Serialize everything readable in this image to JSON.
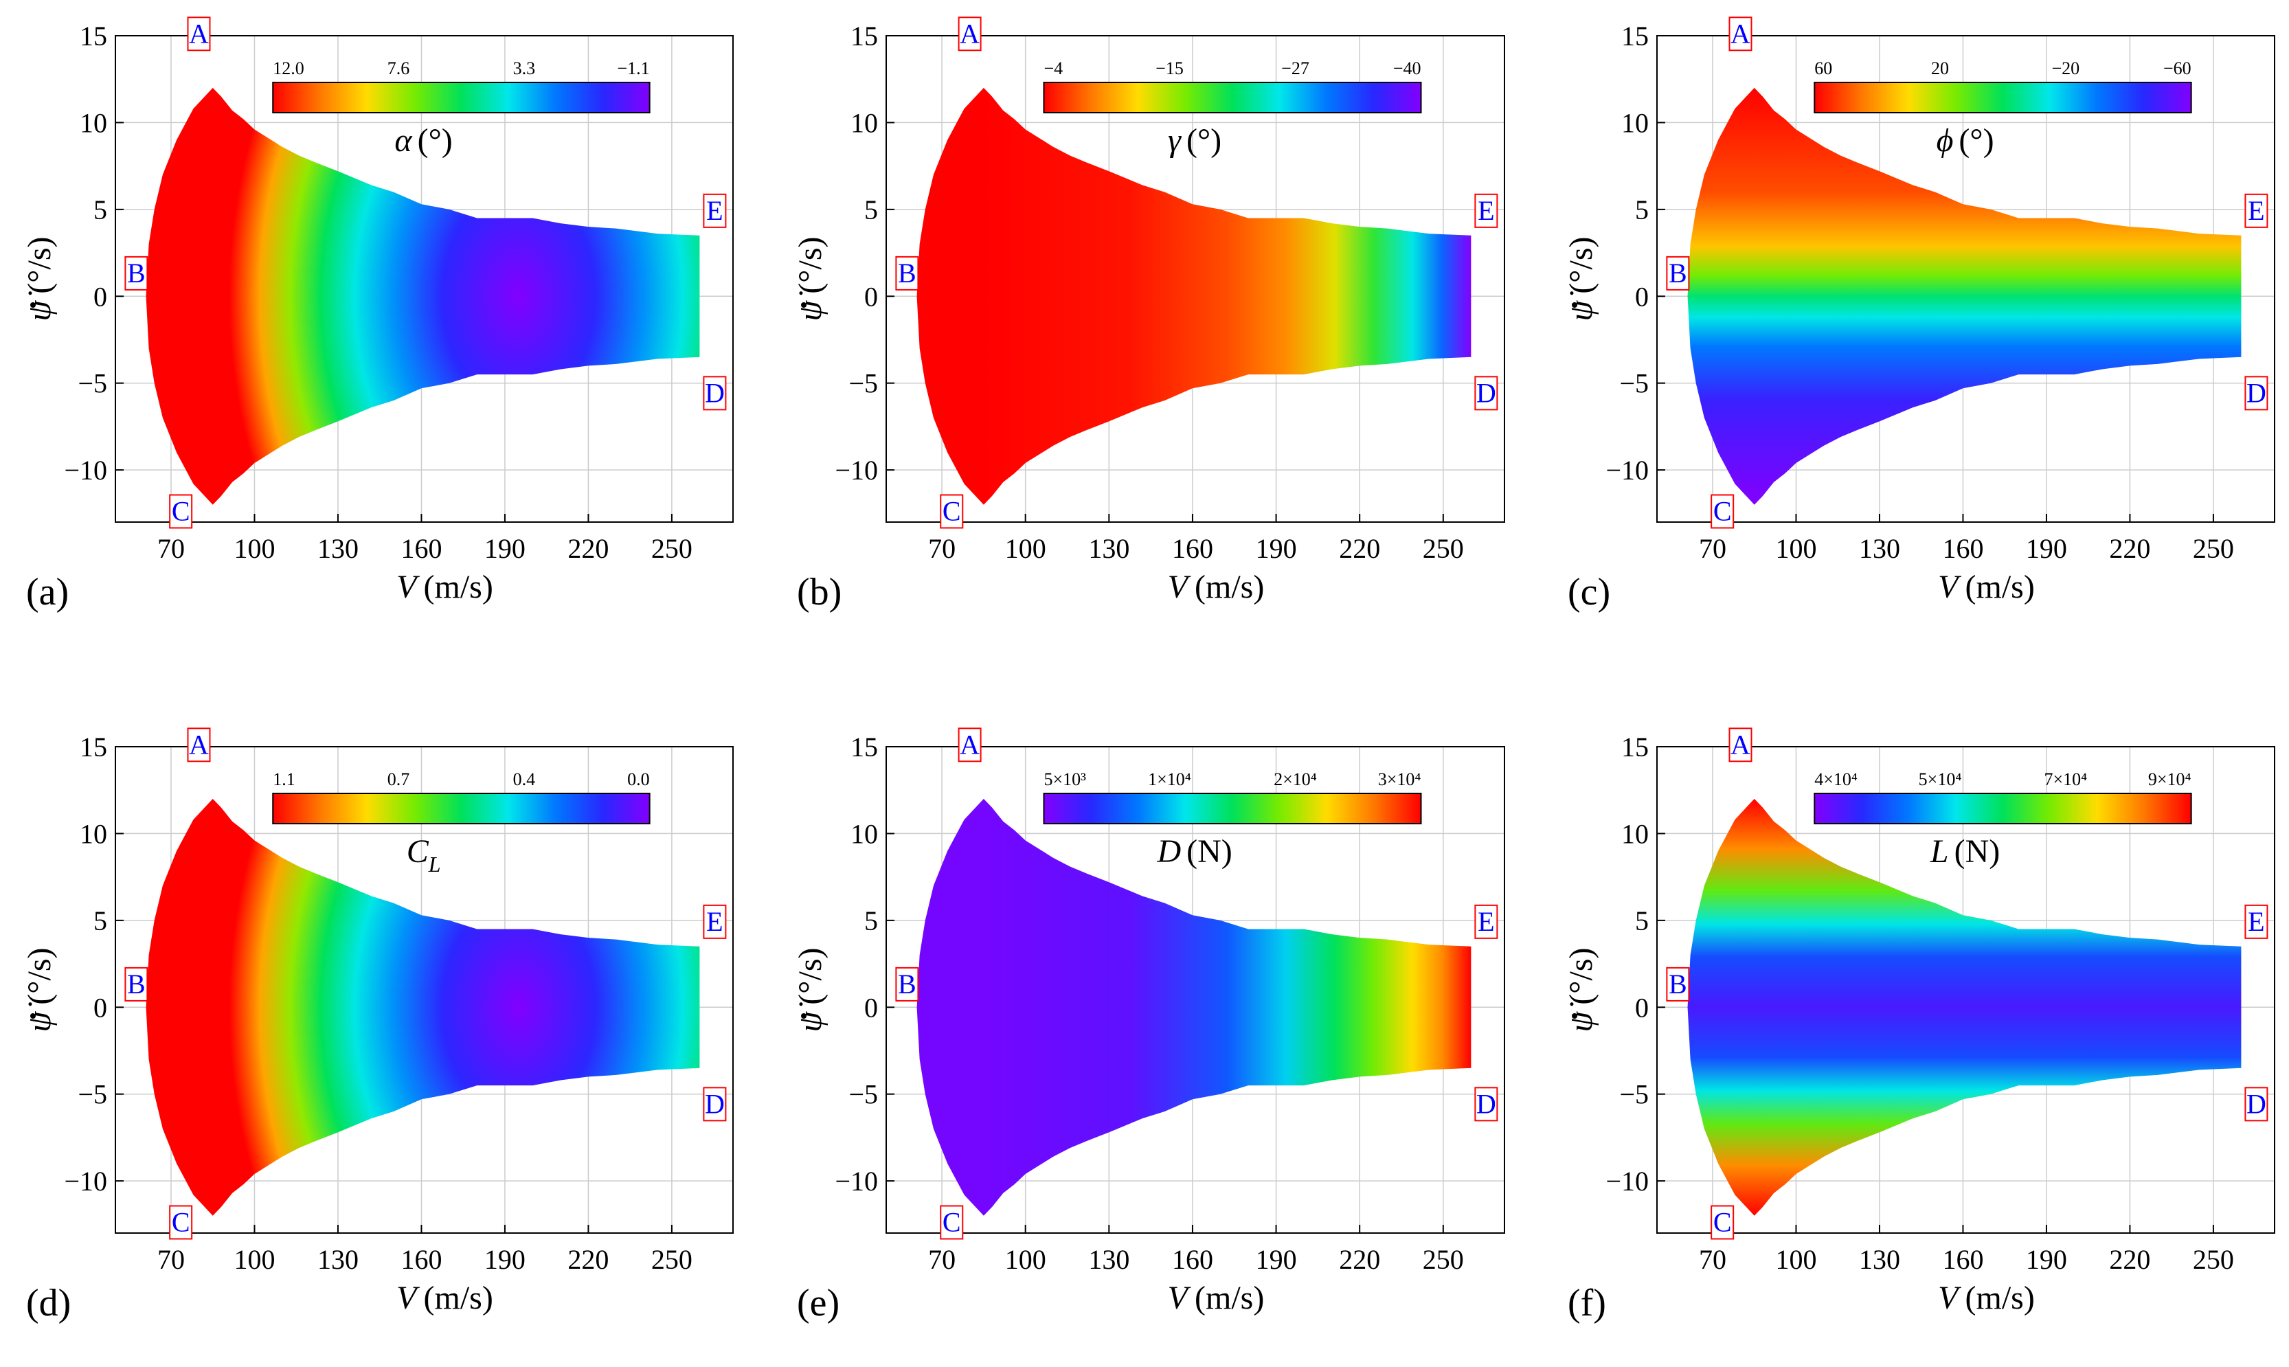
{
  "figure": {
    "description_free": true,
    "panel_count": 6
  },
  "chart_data": [
    {
      "type": "heatmap",
      "panel_label": "(a)",
      "variable": "α",
      "unit": "(°)",
      "xlabel": "V",
      "xunit": "(m/s)",
      "ylabel": "ψ̇",
      "yunit": "(°/s)",
      "xlim": [
        50,
        272
      ],
      "ylim": [
        -13,
        15
      ],
      "xticks": [
        70,
        100,
        130,
        160,
        190,
        220,
        250
      ],
      "yticks": [
        15,
        10,
        5,
        0,
        -5,
        -10
      ],
      "ytick_labels": [
        "15",
        "10",
        "5",
        "0",
        "−5",
        "−10"
      ],
      "colorbar": {
        "palette": "rainbow_red_to_violet",
        "tick_labels": [
          "12.0",
          "7.6",
          "3.3",
          "−1.1"
        ],
        "range": [
          12.0,
          -1.1
        ]
      },
      "field_pattern": "radial",
      "envelope": {
        "upper": [
          [
            62,
            0
          ],
          [
            63,
            5
          ],
          [
            66,
            7
          ],
          [
            73,
            10
          ],
          [
            85,
            12
          ],
          [
            100,
            10
          ],
          [
            130,
            7
          ],
          [
            160,
            5
          ],
          [
            190,
            4.5
          ],
          [
            220,
            4
          ],
          [
            260,
            3.5
          ]
        ],
        "points": {
          "A": [
            85,
            12
          ],
          "B": [
            62,
            0
          ],
          "C": [
            85,
            -12
          ],
          "D": [
            260,
            -3.5
          ],
          "E": [
            260,
            3.5
          ]
        }
      },
      "corner_labels": [
        "A",
        "B",
        "C",
        "D",
        "E"
      ]
    },
    {
      "type": "heatmap",
      "panel_label": "(b)",
      "variable": "γ",
      "unit": "(°)",
      "xlabel": "V",
      "xunit": "(m/s)",
      "ylabel": "ψ̇",
      "yunit": "(°/s)",
      "xlim": [
        50,
        272
      ],
      "ylim": [
        -13,
        15
      ],
      "xticks": [
        70,
        100,
        130,
        160,
        190,
        220,
        250
      ],
      "yticks": [
        15,
        10,
        5,
        0,
        -5,
        -10
      ],
      "ytick_labels": [
        "15",
        "10",
        "5",
        "0",
        "−5",
        "−10"
      ],
      "colorbar": {
        "palette": "rainbow_red_to_violet",
        "tick_labels": [
          "−4",
          "−15",
          "−27",
          "−40"
        ],
        "range": [
          -4,
          -40
        ]
      },
      "field_pattern": "velocity",
      "corner_labels": [
        "A",
        "B",
        "C",
        "D",
        "E"
      ]
    },
    {
      "type": "heatmap",
      "panel_label": "(c)",
      "variable": "ϕ",
      "unit": "(°)",
      "xlabel": "V",
      "xunit": "(m/s)",
      "ylabel": "ψ̇",
      "yunit": "(°/s)",
      "xlim": [
        50,
        272
      ],
      "ylim": [
        -13,
        15
      ],
      "xticks": [
        70,
        100,
        130,
        160,
        190,
        220,
        250
      ],
      "yticks": [
        15,
        10,
        5,
        0,
        -5,
        -10
      ],
      "ytick_labels": [
        "15",
        "10",
        "5",
        "0",
        "−5",
        "−10"
      ],
      "colorbar": {
        "palette": "rainbow_red_to_violet",
        "tick_labels": [
          "60",
          "20",
          "−20",
          "−60"
        ],
        "range": [
          60,
          -60
        ]
      },
      "field_pattern": "signed",
      "corner_labels": [
        "A",
        "B",
        "C",
        "D",
        "E"
      ]
    },
    {
      "type": "heatmap",
      "panel_label": "(d)",
      "variable": "C",
      "variable_sub": "L",
      "unit": "",
      "xlabel": "V",
      "xunit": "(m/s)",
      "ylabel": "ψ̇",
      "yunit": "(°/s)",
      "xlim": [
        50,
        272
      ],
      "ylim": [
        -13,
        15
      ],
      "xticks": [
        70,
        100,
        130,
        160,
        190,
        220,
        250
      ],
      "yticks": [
        15,
        10,
        5,
        0,
        -5,
        -10
      ],
      "ytick_labels": [
        "15",
        "10",
        "5",
        "0",
        "−5",
        "−10"
      ],
      "colorbar": {
        "palette": "rainbow_red_to_violet",
        "tick_labels": [
          "1.1",
          "0.7",
          "0.4",
          "0.0"
        ],
        "range": [
          1.1,
          0.0
        ]
      },
      "field_pattern": "radial",
      "corner_labels": [
        "A",
        "B",
        "C",
        "D",
        "E"
      ]
    },
    {
      "type": "heatmap",
      "panel_label": "(e)",
      "variable": "D",
      "unit": "(N)",
      "xlabel": "V",
      "xunit": "(m/s)",
      "ylabel": "ψ̇",
      "yunit": "(°/s)",
      "xlim": [
        50,
        272
      ],
      "ylim": [
        -13,
        15
      ],
      "xticks": [
        70,
        100,
        130,
        160,
        190,
        220,
        250
      ],
      "yticks": [
        15,
        10,
        5,
        0,
        -5,
        -10
      ],
      "ytick_labels": [
        "15",
        "10",
        "5",
        "0",
        "−5",
        "−10"
      ],
      "colorbar": {
        "palette": "rainbow_violet_to_red",
        "tick_labels": [
          "5×10³",
          "1×10⁴",
          "2×10⁴",
          "3×10⁴"
        ],
        "range": [
          5000,
          30000
        ]
      },
      "field_pattern": "velocity",
      "corner_labels": [
        "A",
        "B",
        "C",
        "D",
        "E"
      ]
    },
    {
      "type": "heatmap",
      "panel_label": "(f)",
      "variable": "L",
      "unit": "(N)",
      "xlabel": "V",
      "xunit": "(m/s)",
      "ylabel": "ψ̇",
      "yunit": "(°/s)",
      "xlim": [
        50,
        272
      ],
      "ylim": [
        -13,
        15
      ],
      "xticks": [
        70,
        100,
        130,
        160,
        190,
        220,
        250
      ],
      "yticks": [
        15,
        10,
        5,
        0,
        -5,
        -10
      ],
      "ytick_labels": [
        "15",
        "10",
        "5",
        "0",
        "−5",
        "−10"
      ],
      "colorbar": {
        "palette": "rainbow_violet_to_red",
        "tick_labels": [
          "4×10⁴",
          "5×10⁴",
          "7×10⁴",
          "9×10⁴"
        ],
        "range": [
          40000,
          90000
        ]
      },
      "field_pattern": "edge",
      "corner_labels": [
        "A",
        "B",
        "C",
        "D",
        "E"
      ]
    }
  ]
}
